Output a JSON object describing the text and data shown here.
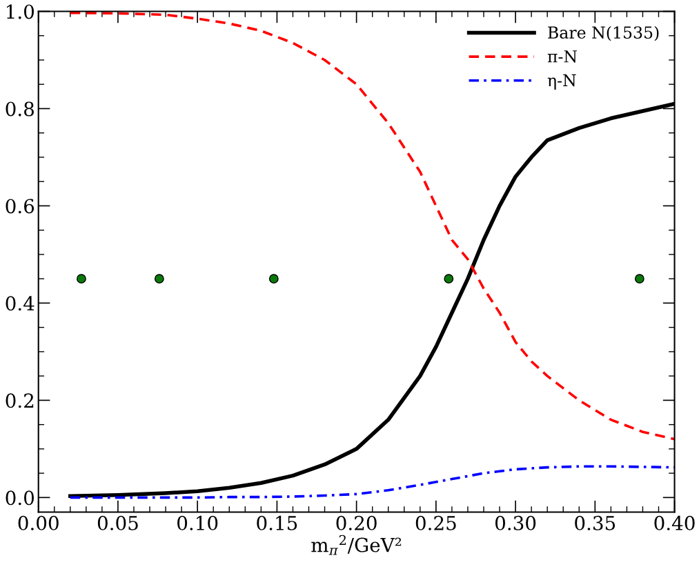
{
  "chart_data": {
    "type": "line",
    "xlabel": "m$_{π}$$^{2}$/GeV²",
    "xlim": [
      0.0,
      0.4
    ],
    "ylim": [
      -0.03,
      1.0
    ],
    "xticks": [
      {
        "value": 0.0,
        "label": "0.00"
      },
      {
        "value": 0.05,
        "label": "0.05"
      },
      {
        "value": 0.1,
        "label": "0.10"
      },
      {
        "value": 0.15,
        "label": "0.15"
      },
      {
        "value": 0.2,
        "label": "0.20"
      },
      {
        "value": 0.25,
        "label": "0.25"
      },
      {
        "value": 0.3,
        "label": "0.30"
      },
      {
        "value": 0.35,
        "label": "0.35"
      },
      {
        "value": 0.4,
        "label": "0.40"
      }
    ],
    "yticks": [
      {
        "value": 0.0,
        "label": "0.0"
      },
      {
        "value": 0.2,
        "label": "0.2"
      },
      {
        "value": 0.4,
        "label": "0.4"
      },
      {
        "value": 0.6,
        "label": "0.6"
      },
      {
        "value": 0.8,
        "label": "0.8"
      },
      {
        "value": 1.0,
        "label": "1.0"
      }
    ],
    "grid": false,
    "legend": "top right",
    "x": [
      0.02,
      0.05,
      0.08,
      0.1,
      0.12,
      0.14,
      0.16,
      0.18,
      0.2,
      0.22,
      0.24,
      0.25,
      0.26,
      0.27,
      0.28,
      0.29,
      0.3,
      0.31,
      0.32,
      0.34,
      0.35,
      0.36,
      0.38,
      0.4
    ],
    "series": [
      {
        "name": "Bare N(1535)",
        "color": "#000000",
        "line_style": "solid",
        "values": [
          0.003,
          0.005,
          0.009,
          0.013,
          0.02,
          0.03,
          0.045,
          0.068,
          0.1,
          0.16,
          0.25,
          0.31,
          0.38,
          0.45,
          0.53,
          0.6,
          0.66,
          0.7,
          0.735,
          0.76,
          0.77,
          0.78,
          0.795,
          0.81
        ]
      },
      {
        "name": "π-N",
        "color": "#ff0000",
        "line_style": "dashed",
        "values": [
          0.997,
          0.996,
          0.993,
          0.985,
          0.975,
          0.96,
          0.935,
          0.9,
          0.85,
          0.77,
          0.67,
          0.6,
          0.53,
          0.49,
          0.43,
          0.38,
          0.32,
          0.28,
          0.25,
          0.2,
          0.18,
          0.16,
          0.135,
          0.12
        ]
      },
      {
        "name": "η-N",
        "color": "#0000ff",
        "line_style": "dashdot",
        "values": [
          0.0,
          0.0,
          0.0,
          0.0,
          0.001,
          0.001,
          0.002,
          0.004,
          0.007,
          0.015,
          0.026,
          0.032,
          0.038,
          0.044,
          0.05,
          0.054,
          0.058,
          0.06,
          0.062,
          0.064,
          0.064,
          0.064,
          0.063,
          0.062
        ]
      },
      {
        "type": "scatter",
        "color": "#0a7a0a",
        "marker": "circle",
        "x": [
          0.027,
          0.076,
          0.148,
          0.258,
          0.378
        ],
        "values": [
          0.45,
          0.45,
          0.45,
          0.45,
          0.45
        ]
      }
    ]
  }
}
